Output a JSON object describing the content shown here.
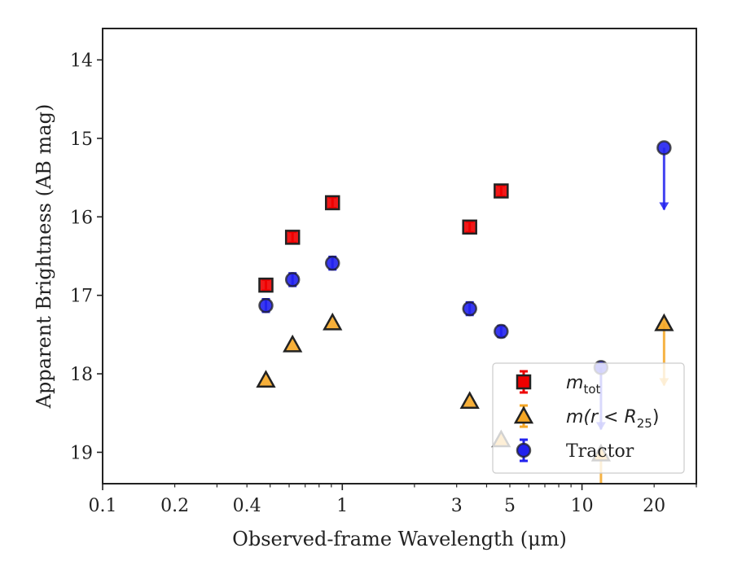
{
  "chart_data": {
    "type": "scatter",
    "xlabel": "Observed-frame Wavelength (μm)",
    "ylabel": "Apparent Brightness (AB mag)",
    "xscale": "log",
    "xlim": [
      0.1,
      30
    ],
    "ylim": [
      19.4,
      13.6
    ],
    "y_inverted": true,
    "grid": false,
    "legend_position": "lower-right",
    "x_ticks": [
      {
        "value": 0.1,
        "label": "0.1"
      },
      {
        "value": 0.2,
        "label": "0.2"
      },
      {
        "value": 0.4,
        "label": "0.4"
      },
      {
        "value": 1,
        "label": "1"
      },
      {
        "value": 3,
        "label": "3"
      },
      {
        "value": 5,
        "label": "5"
      },
      {
        "value": 10,
        "label": "10"
      },
      {
        "value": 20,
        "label": "20"
      }
    ],
    "y_ticks": [
      {
        "value": 14,
        "label": "14"
      },
      {
        "value": 15,
        "label": "15"
      },
      {
        "value": 16,
        "label": "16"
      },
      {
        "value": 17,
        "label": "17"
      },
      {
        "value": 18,
        "label": "18"
      },
      {
        "value": 19,
        "label": "19"
      }
    ],
    "series": [
      {
        "name": "m_tot",
        "legend_label": "m",
        "legend_sub": "tot",
        "marker": "square",
        "color": "#ee0000",
        "edge_color": "#222222",
        "points": [
          {
            "x": 0.48,
            "y": 16.87,
            "err": 0.07
          },
          {
            "x": 0.62,
            "y": 16.26,
            "err": 0.07
          },
          {
            "x": 0.91,
            "y": 15.82,
            "err": 0.07
          },
          {
            "x": 3.4,
            "y": 16.13,
            "err": 0.07
          },
          {
            "x": 4.6,
            "y": 15.67,
            "err": 0.07
          }
        ]
      },
      {
        "name": "m(r<R25)",
        "legend_label": "m(r < R",
        "legend_sub": "25",
        "legend_tail": ")",
        "marker": "triangle",
        "color": "#f5a623",
        "edge_color": "#222222",
        "points": [
          {
            "x": 0.48,
            "y": 18.08
          },
          {
            "x": 0.62,
            "y": 17.63
          },
          {
            "x": 0.91,
            "y": 17.35
          },
          {
            "x": 3.4,
            "y": 18.35
          },
          {
            "x": 4.6,
            "y": 18.84
          },
          {
            "x": 12,
            "y": 19.02,
            "upper_limit": true
          },
          {
            "x": 22,
            "y": 17.36,
            "upper_limit": true
          }
        ]
      },
      {
        "name": "Tractor",
        "marker": "circle",
        "color": "#2222ee",
        "edge_color": "#222222",
        "points": [
          {
            "x": 0.48,
            "y": 17.13,
            "err": 0.08
          },
          {
            "x": 0.62,
            "y": 16.8,
            "err": 0.08
          },
          {
            "x": 0.91,
            "y": 16.59,
            "err": 0.08
          },
          {
            "x": 3.4,
            "y": 17.17,
            "err": 0.08
          },
          {
            "x": 4.6,
            "y": 17.46,
            "err": 0.07
          },
          {
            "x": 12,
            "y": 17.92,
            "upper_limit": true
          },
          {
            "x": 22,
            "y": 15.12,
            "upper_limit": true
          }
        ]
      }
    ]
  }
}
